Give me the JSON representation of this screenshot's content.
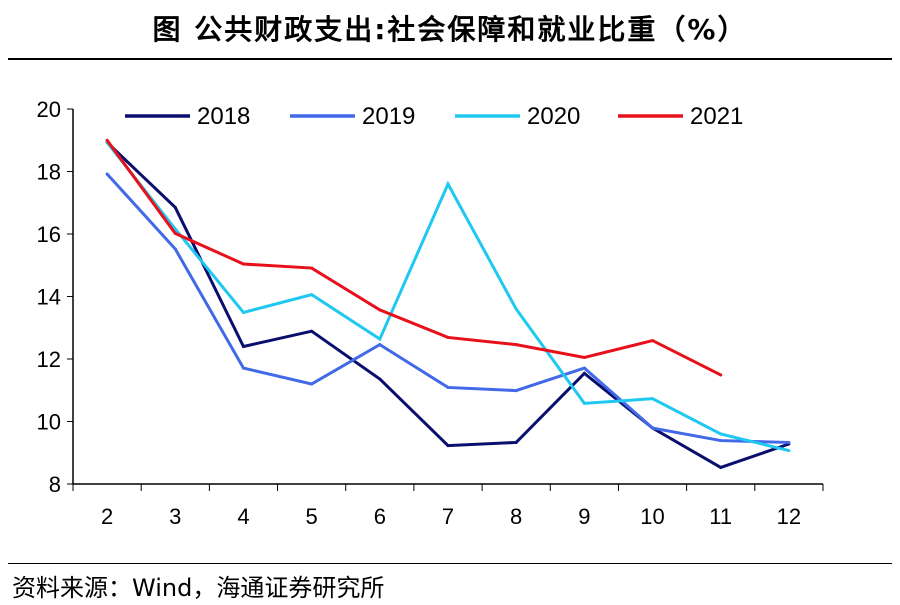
{
  "chart_data": {
    "type": "line",
    "title": "图  公共财政支出:社会保障和就业比重（%）",
    "xlabel": "",
    "ylabel": "",
    "x": [
      2,
      3,
      4,
      5,
      6,
      7,
      8,
      9,
      10,
      11,
      12
    ],
    "ylim": [
      8,
      20
    ],
    "yticks": [
      8,
      10,
      12,
      14,
      16,
      18,
      20
    ],
    "grid": false,
    "legend": "top",
    "series": [
      {
        "name": "2018",
        "color": "#0a0f6e",
        "values": [
          18.93,
          16.85,
          12.4,
          12.89,
          11.36,
          9.23,
          9.33,
          11.54,
          9.79,
          8.53,
          9.28
        ]
      },
      {
        "name": "2019",
        "color": "#4169e8",
        "values": [
          17.92,
          15.52,
          11.71,
          11.2,
          12.46,
          11.09,
          10.99,
          11.71,
          9.79,
          9.39,
          9.33
        ]
      },
      {
        "name": "2020",
        "color": "#1ec8f0",
        "values": [
          18.93,
          16.16,
          13.49,
          14.06,
          12.64,
          17.6,
          13.6,
          10.58,
          10.73,
          9.6,
          9.07
        ]
      },
      {
        "name": "2021",
        "color": "#e8101a",
        "values": [
          19.0,
          16.02,
          15.04,
          14.91,
          13.57,
          12.69,
          12.46,
          12.05,
          12.59,
          11.49,
          null
        ]
      }
    ]
  },
  "source": "资料来源：Wind，海通证券研究所"
}
